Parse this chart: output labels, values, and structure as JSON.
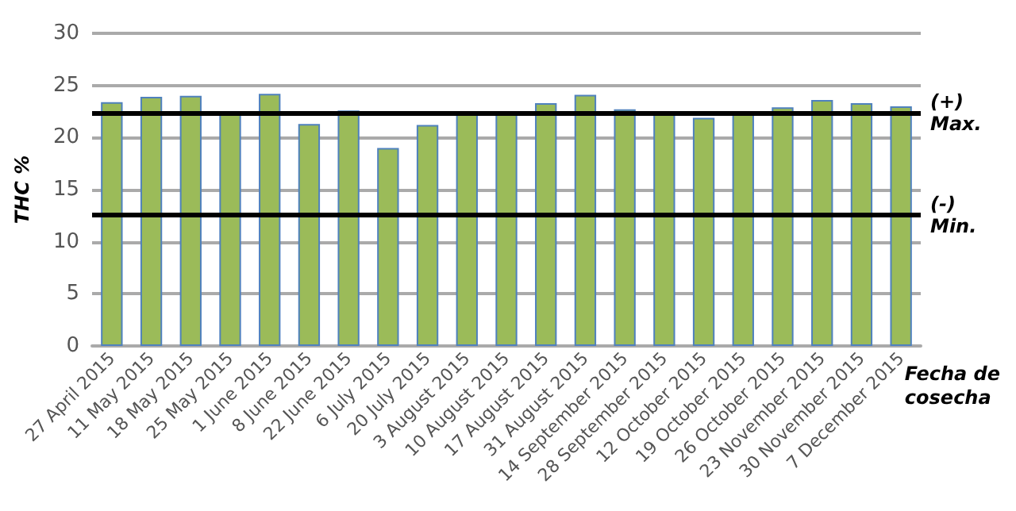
{
  "chart_data": {
    "type": "bar",
    "ylabel": "THC %",
    "xlabel": "Fecha de\ncosecha",
    "categories": [
      "27 April 2015",
      "11 May 2015",
      "18 May 2015",
      "25 May 2015",
      "1 June 2015",
      "8 June 2015",
      "22 June 2015",
      "6 July 2015",
      "20 July 2015",
      "3 August 2015",
      "10 August 2015",
      "17 August 2015",
      "31 August 2015",
      "14 September 2015",
      "28 September 2015",
      "12 October 2015",
      "19 October 2015",
      "26 October 2015",
      "23 November 2015",
      "30 November 2015",
      "7 December 2015"
    ],
    "values": [
      23.4,
      23.9,
      24.0,
      22.3,
      24.2,
      21.3,
      22.6,
      19.0,
      21.2,
      22.4,
      22.4,
      23.3,
      24.1,
      22.7,
      22.3,
      21.9,
      22.3,
      22.9,
      23.6,
      23.3,
      23.0
    ],
    "color": "#9bbb59",
    "ylim": [
      0,
      30
    ],
    "yticks": [
      0,
      5,
      10,
      15,
      20,
      25,
      30
    ],
    "grid": "y",
    "ref_lines": [
      {
        "axis": "y",
        "value": 22.4,
        "label": "(+)\nMax.",
        "color": "#000000"
      },
      {
        "axis": "y",
        "value": 12.6,
        "label": "(-)\nMin.",
        "color": "#000000"
      }
    ]
  }
}
